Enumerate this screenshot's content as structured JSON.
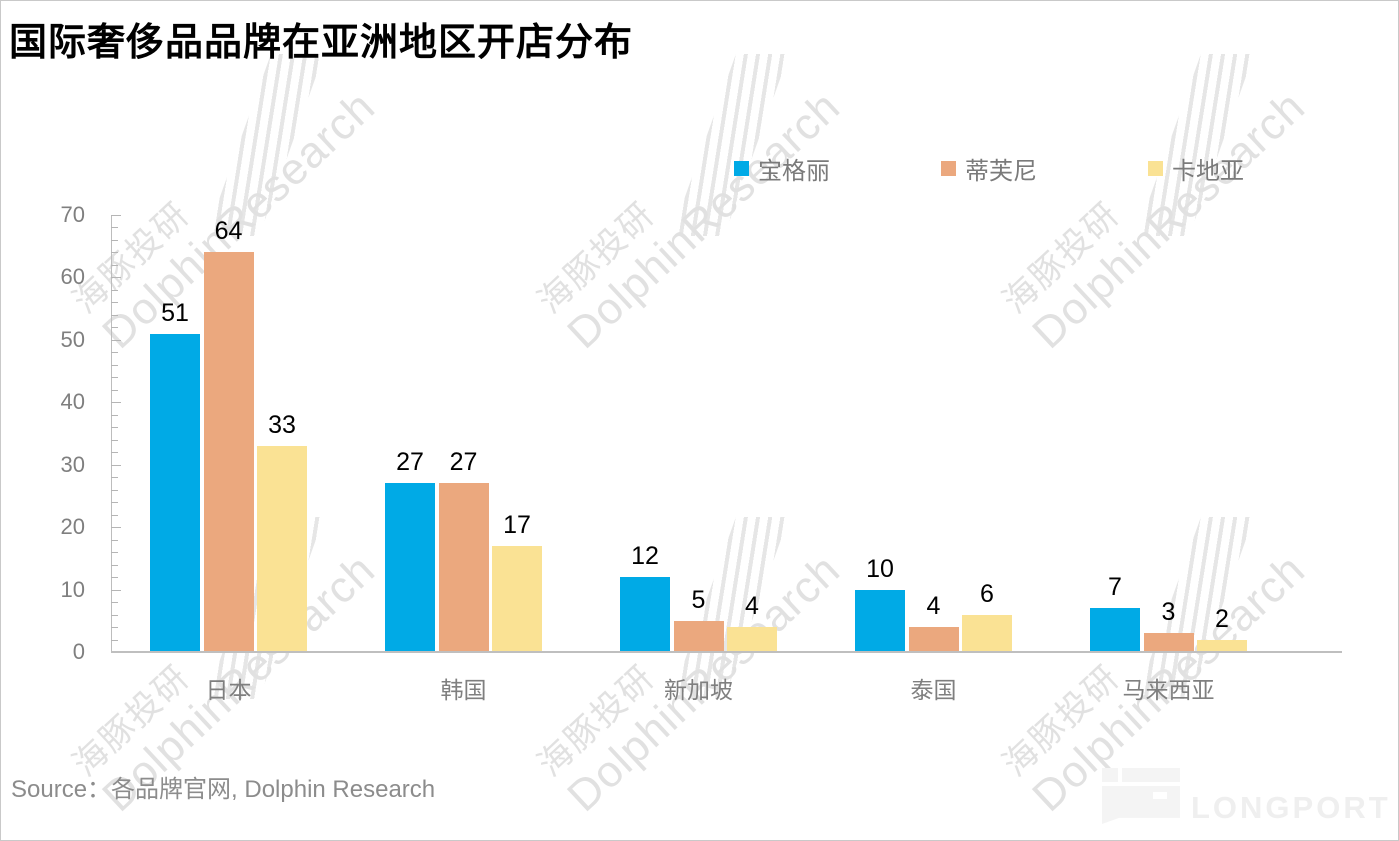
{
  "title": "国际奢侈品品牌在亚洲地区开店分布",
  "source": "Source：各品牌官网, Dolphin Research",
  "watermark": {
    "zh": "海豚投研",
    "en": "DolphinResearch"
  },
  "brand_logo": {
    "text": "LONGPORT"
  },
  "colors": {
    "series_blue": "#00aae6",
    "series_orange": "#ebA87e",
    "series_yellow": "#fae294",
    "axis_gray": "#7f7f7f",
    "label_black": "#000000"
  },
  "chart_data": {
    "type": "bar",
    "title": "国际奢侈品品牌在亚洲地区开店分布",
    "categories": [
      "日本",
      "韩国",
      "新加坡",
      "泰国",
      "马来西亚"
    ],
    "series": [
      {
        "name": "宝格丽",
        "color": "#00aae6",
        "values": [
          51,
          27,
          12,
          10,
          7
        ]
      },
      {
        "name": "蒂芙尼",
        "color": "#ebA87e",
        "values": [
          64,
          27,
          5,
          4,
          3
        ]
      },
      {
        "name": "卡地亚",
        "color": "#fae294",
        "values": [
          33,
          17,
          4,
          6,
          2
        ]
      }
    ],
    "xlabel": "",
    "ylabel": "",
    "ylim": [
      0,
      70
    ],
    "yticks": [
      0,
      10,
      20,
      30,
      40,
      50,
      60,
      70
    ],
    "minor_tick_step": 2,
    "grid": false,
    "legend_position": "top-right",
    "data_labels": true
  }
}
